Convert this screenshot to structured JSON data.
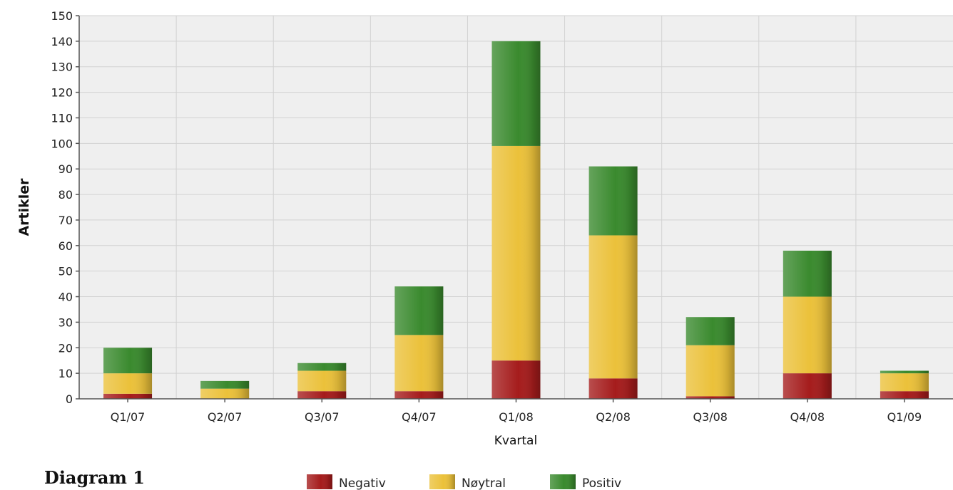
{
  "caption": "Diagram 1",
  "chart_data": {
    "type": "bar",
    "stacked": true,
    "categories": [
      "Q1/07",
      "Q2/07",
      "Q3/07",
      "Q4/07",
      "Q1/08",
      "Q2/08",
      "Q3/08",
      "Q4/08",
      "Q1/09"
    ],
    "series": [
      {
        "name": "Negativ",
        "color": "#a51c1c",
        "values": [
          2,
          0,
          3,
          3,
          15,
          8,
          1,
          10,
          3
        ]
      },
      {
        "name": "Nøytral",
        "color": "#ebc13a",
        "values": [
          8,
          4,
          8,
          22,
          84,
          56,
          20,
          30,
          7
        ]
      },
      {
        "name": "Positiv",
        "color": "#3a8a2e",
        "values": [
          10,
          3,
          3,
          19,
          41,
          27,
          11,
          18,
          1
        ]
      }
    ],
    "xlabel": "Kvartal",
    "ylabel": "Artikler",
    "ylim": [
      0,
      150
    ],
    "ytick_step": 10,
    "grid": true,
    "legend_position": "bottom"
  }
}
